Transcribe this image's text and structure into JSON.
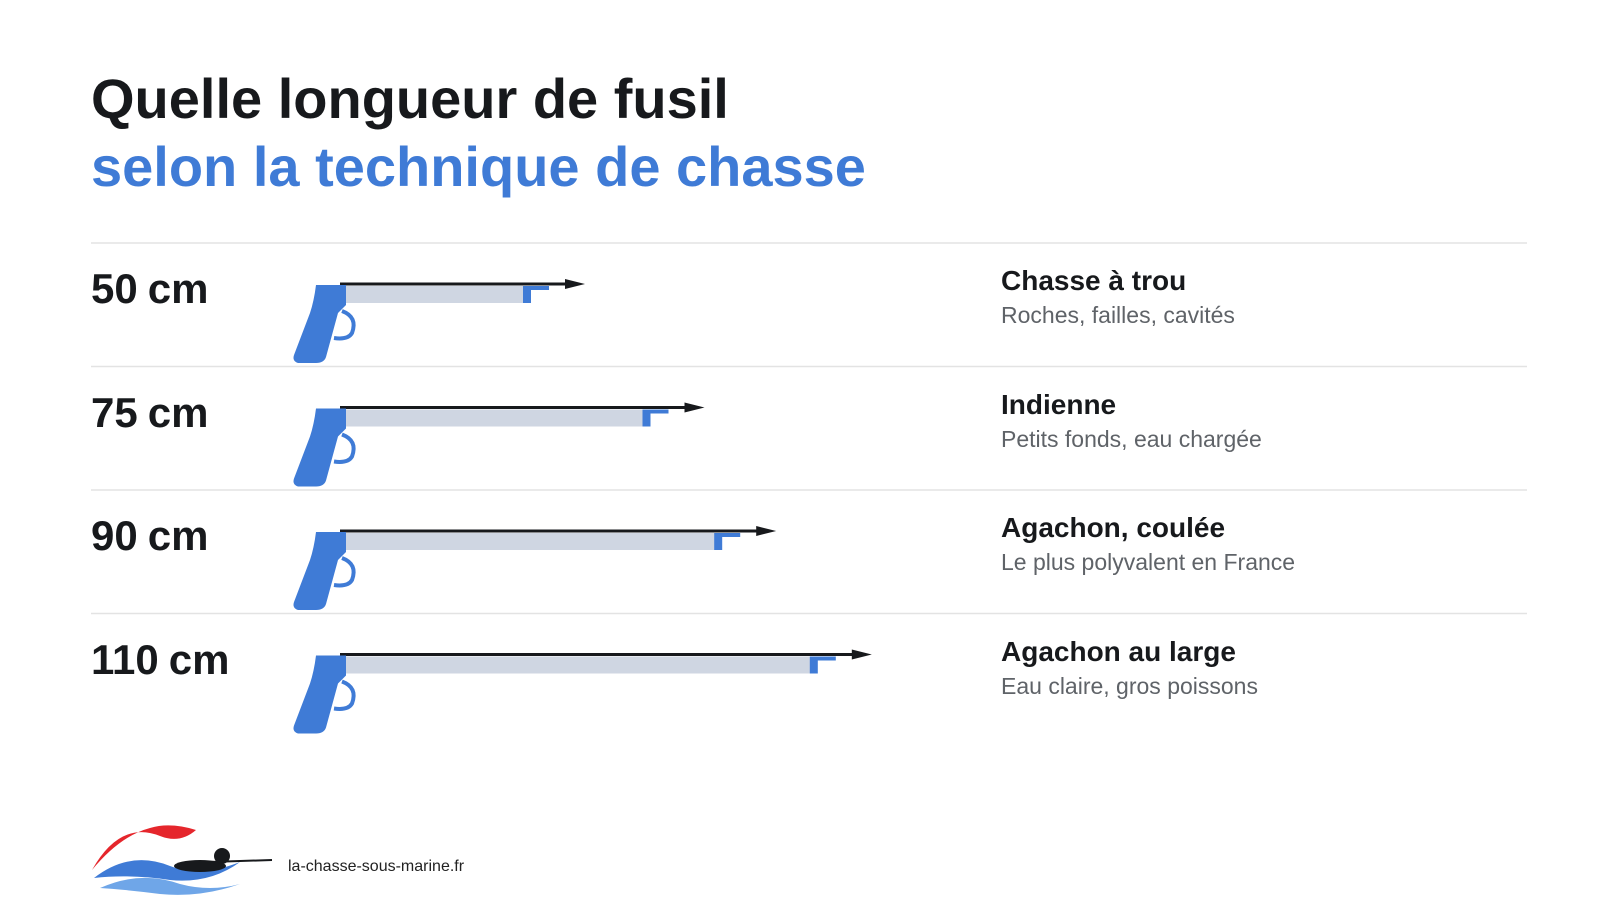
{
  "header": {
    "title": "Quelle longueur de fusil",
    "subtitle": "selon la technique de chasse"
  },
  "rows": [
    {
      "length": 50,
      "unit": "cm",
      "technique": "Chasse à trou",
      "description": "Roches, failles, cavités"
    },
    {
      "length": 75,
      "unit": "cm",
      "technique": "Indienne",
      "description": "Petits fonds, eau chargée"
    },
    {
      "length": 90,
      "unit": "cm",
      "technique": "Agachon, coulée",
      "description": "Le plus polyvalent en France"
    },
    {
      "length": 110,
      "unit": "cm",
      "technique": "Agachon au large",
      "description": "Eau claire, gros poissons"
    }
  ],
  "footer": {
    "site": "la-chasse-sous-marine.fr"
  }
}
